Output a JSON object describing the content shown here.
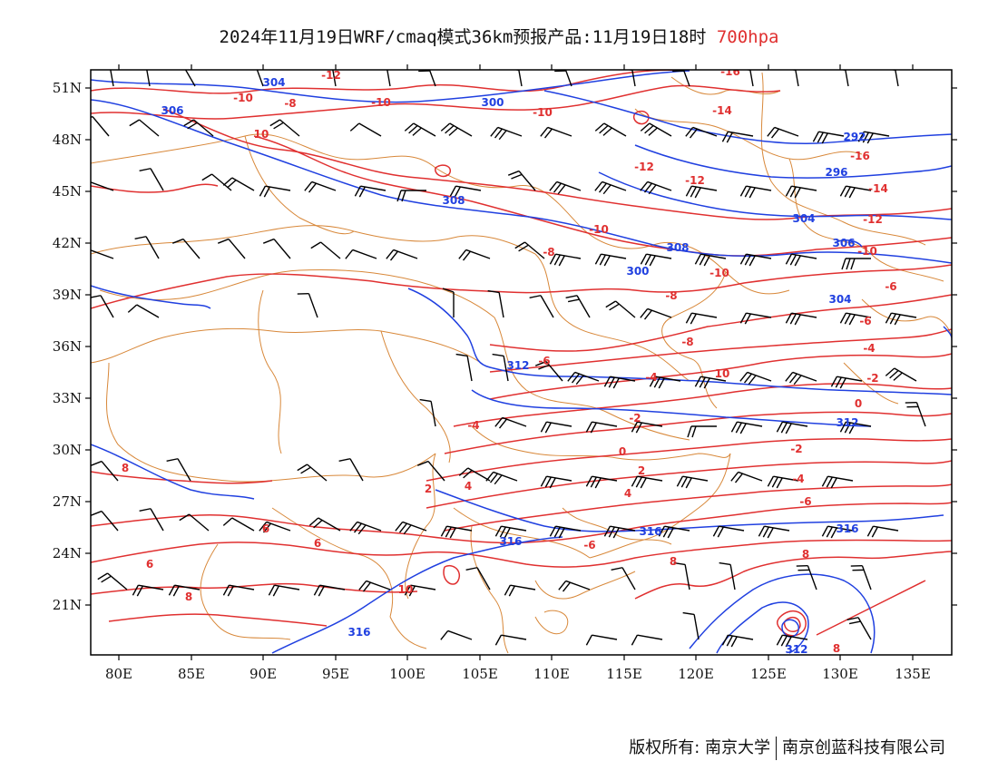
{
  "title": {
    "main": "2024年11月19日WRF/cmaq模式36km预报产品:11月19日18时",
    "level": "700hpa"
  },
  "axes": {
    "lon_labels": [
      "80E",
      "85E",
      "90E",
      "95E",
      "100E",
      "105E",
      "110E",
      "115E",
      "120E",
      "125E",
      "130E",
      "135E"
    ],
    "lat_labels": [
      "51N",
      "48N",
      "45N",
      "42N",
      "39N",
      "36N",
      "33N",
      "30N",
      "27N",
      "24N",
      "21N"
    ]
  },
  "colors": {
    "height": "#2040e0",
    "temperature": "#e03030",
    "border": "#d8883a",
    "wind": "#000000"
  },
  "height_labels": [
    "304",
    "306",
    "300",
    "292",
    "296",
    "308",
    "304",
    "308",
    "300",
    "304",
    "306",
    "312",
    "312",
    "316",
    "316",
    "316",
    "316",
    "312"
  ],
  "temp_labels": [
    "-12",
    "-10",
    "-10",
    "-8",
    "-10",
    "-14",
    "-16",
    "-12",
    "-12",
    "-16",
    "-14",
    "-12",
    "-10",
    "-8",
    "-10",
    "-10",
    "-8",
    "-6",
    "-6",
    "-8",
    "-4",
    "-4",
    "-6",
    "-2",
    "-4",
    "-2",
    "0",
    "-2",
    "-4",
    "-6",
    "0",
    "2",
    "4",
    "2",
    "4",
    "-6",
    "6",
    "6",
    "8",
    "6",
    "8",
    "8",
    "8",
    "10",
    "10",
    "8",
    "10"
  ],
  "footer": {
    "copyright": "版权所有: 南京大学",
    "company": "南京创蓝科技有限公司"
  }
}
